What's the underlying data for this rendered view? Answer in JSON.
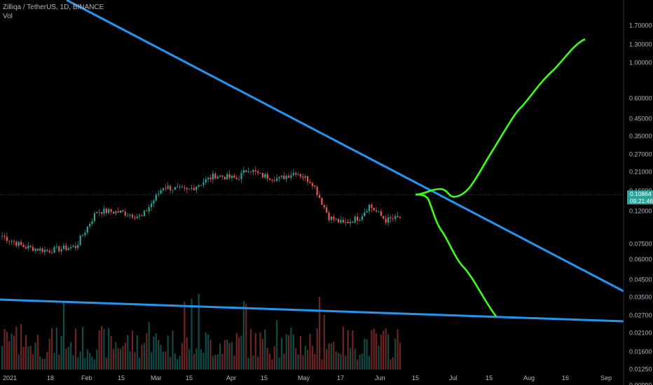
{
  "header": {
    "title": "Zilliqa / TetherUS, 1D, BINANCE",
    "subtitle": "Vol"
  },
  "price_badge": {
    "price": "0.10864",
    "countdown": "09:21:46"
  },
  "colors": {
    "background": "#000000",
    "up": "#26a69a",
    "down": "#ef5350",
    "trendline": "#2196f3",
    "projection": "#39ff14",
    "axis_text": "#b2b5be"
  },
  "chart_data": {
    "type": "candlestick",
    "title": "Zilliqa / TetherUS, 1D, BINANCE",
    "y_scale": "log",
    "y_ticks": [
      "1.70000",
      "1.30000",
      "1.00000",
      "0.60000",
      "0.45000",
      "0.35000",
      "0.27000",
      "0.21000",
      "0.16000",
      "0.12000",
      "0.07500",
      "0.06000",
      "0.04500",
      "0.03500",
      "0.02700",
      "0.02100",
      "0.01600",
      "0.01250",
      "0.00990"
    ],
    "x_ticks": [
      "2021",
      "18",
      "Feb",
      "15",
      "Mar",
      "15",
      "Apr",
      "15",
      "May",
      "17",
      "Jun",
      "15",
      "Jul",
      "15",
      "Aug",
      "16",
      "Sep"
    ],
    "last_price": 0.10864,
    "approx_close_path": [
      {
        "date": "2021-01-01",
        "close": 0.084
      },
      {
        "date": "2021-01-10",
        "close": 0.072
      },
      {
        "date": "2021-01-20",
        "close": 0.068
      },
      {
        "date": "2021-02-01",
        "close": 0.072
      },
      {
        "date": "2021-02-10",
        "close": 0.12
      },
      {
        "date": "2021-02-20",
        "close": 0.118
      },
      {
        "date": "2021-03-01",
        "close": 0.11
      },
      {
        "date": "2021-03-10",
        "close": 0.17
      },
      {
        "date": "2021-03-20",
        "close": 0.16
      },
      {
        "date": "2021-04-01",
        "close": 0.2
      },
      {
        "date": "2021-04-10",
        "close": 0.19
      },
      {
        "date": "2021-04-15",
        "close": 0.22
      },
      {
        "date": "2021-04-20",
        "close": 0.2
      },
      {
        "date": "2021-04-28",
        "close": 0.19
      },
      {
        "date": "2021-05-05",
        "close": 0.21
      },
      {
        "date": "2021-05-12",
        "close": 0.18
      },
      {
        "date": "2021-05-19",
        "close": 0.11
      },
      {
        "date": "2021-05-25",
        "close": 0.1
      },
      {
        "date": "2021-06-01",
        "close": 0.11
      },
      {
        "date": "2021-06-05",
        "close": 0.13
      },
      {
        "date": "2021-06-12",
        "close": 0.105
      },
      {
        "date": "2021-06-18",
        "close": 0.109
      }
    ],
    "annotations": [
      {
        "kind": "trendline",
        "color": "#2196f3",
        "description": "descending resistance"
      },
      {
        "kind": "trendline",
        "color": "#2196f3",
        "description": "shallow descending support"
      },
      {
        "kind": "projection",
        "color": "#39ff14",
        "direction": "up",
        "target": 1.0
      },
      {
        "kind": "projection",
        "color": "#39ff14",
        "direction": "down",
        "target": 0.017
      }
    ]
  }
}
